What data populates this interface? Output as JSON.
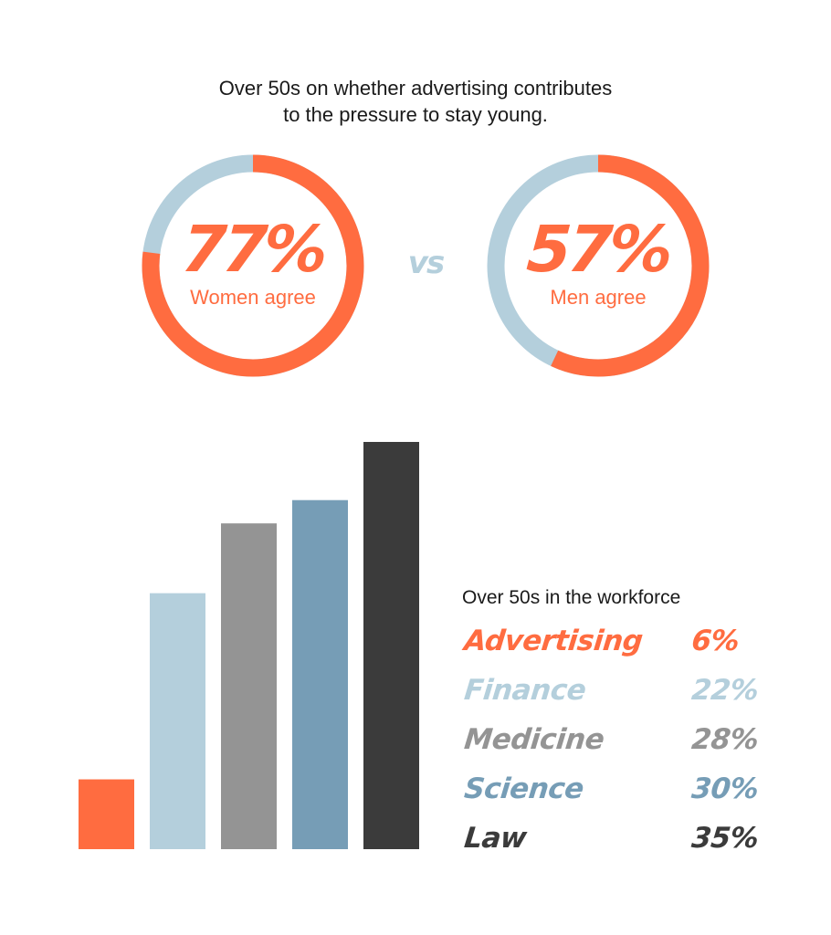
{
  "title": {
    "line1": "Over 50s on whether advertising contributes",
    "line2": "to the pressure to stay young."
  },
  "donuts": [
    {
      "value_label": "77%",
      "label": "Women agree",
      "percent": 77
    },
    {
      "value_label": "57%",
      "label": "Men agree",
      "percent": 57
    }
  ],
  "vs_label": "vs",
  "colors": {
    "orange": "#ff6c40",
    "light_blue": "#b4cfdc",
    "gray": "#949494",
    "steel_blue": "#769db6",
    "dark": "#3b3b3b"
  },
  "legend_title": "Over 50s in the workforce",
  "chart_data": {
    "type": "bar",
    "title": "Over 50s in the workforce",
    "categories": [
      "Advertising",
      "Finance",
      "Medicine",
      "Science",
      "Law"
    ],
    "values": [
      6,
      22,
      28,
      30,
      35
    ],
    "value_labels": [
      "6%",
      "22%",
      "28%",
      "30%",
      "35%"
    ],
    "colors": [
      "#ff6c40",
      "#b4cfdc",
      "#949494",
      "#769db6",
      "#3b3b3b"
    ],
    "ylim": [
      0,
      35
    ],
    "grid": false,
    "legend": "right"
  }
}
